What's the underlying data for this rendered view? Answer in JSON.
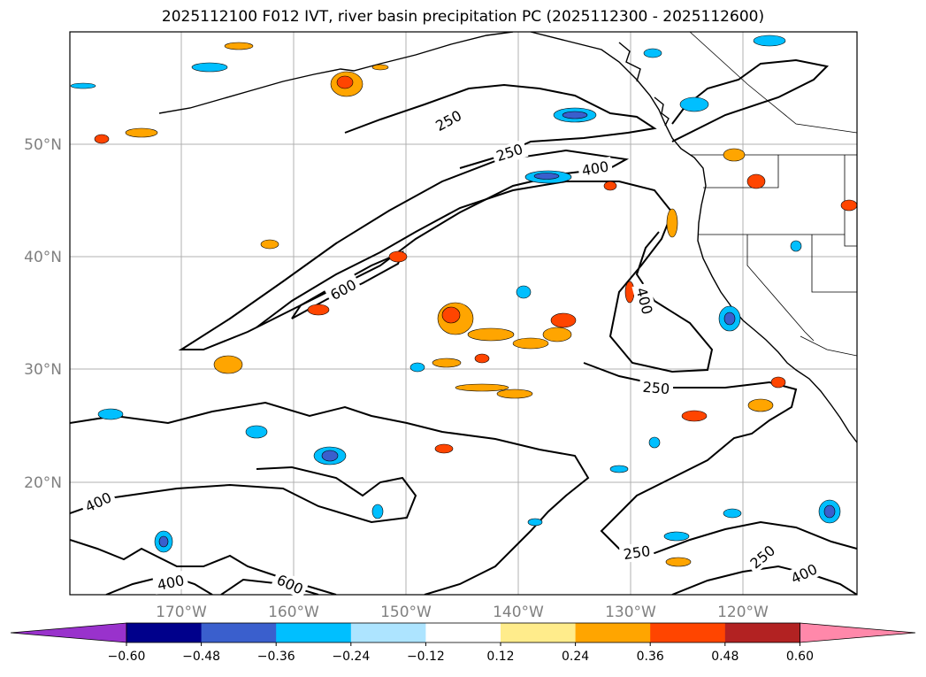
{
  "title": "2025112100 F012 IVT, river basin precipitation PC (2025112300 - 2025112600)",
  "map": {
    "lat_labels": [
      "50°N",
      "40°N",
      "30°N",
      "20°N"
    ],
    "lon_labels": [
      "170°W",
      "160°W",
      "150°W",
      "140°W",
      "130°W",
      "120°W"
    ],
    "contour_labels": [
      "250",
      "250",
      "400",
      "600",
      "400",
      "250",
      "400",
      "400",
      "600",
      "250",
      "250",
      "400"
    ]
  },
  "colorbar": {
    "colors": [
      "#9932CC",
      "#00008B",
      "#3A5FCD",
      "#00BFFF",
      "#ADE4FF",
      "#FFFFFF",
      "#FFEC8B",
      "#FFA500",
      "#FF4500",
      "#B22222",
      "#FF88AA"
    ],
    "tick_labels": [
      "−0.60",
      "−0.48",
      "−0.36",
      "−0.24",
      "−0.12",
      "0.12",
      "0.24",
      "0.36",
      "0.48",
      "0.60"
    ]
  },
  "colors": {
    "positive_low": "#FFA500",
    "positive_mid": "#FF4500",
    "negative_low": "#00BFFF",
    "negative_mid": "#3A5FCD"
  }
}
